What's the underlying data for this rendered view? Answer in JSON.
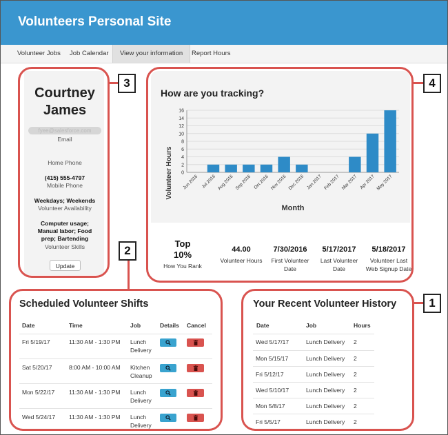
{
  "header": {
    "title": "Volunteers Personal Site"
  },
  "nav": [
    {
      "label": "Volunteer Jobs",
      "active": false
    },
    {
      "label": "Job Calendar",
      "active": false
    },
    {
      "label": "View your information",
      "active": true
    },
    {
      "label": "Report Hours",
      "active": false
    }
  ],
  "callouts": {
    "c1": "1",
    "c2": "2",
    "c3": "3",
    "c4": "4"
  },
  "colors": {
    "header": "#3a96cf",
    "frame": "#d9534f",
    "bar": "#2e8bc7",
    "details_button": "#39a3cf",
    "cancel_button": "#d9534f"
  },
  "profile": {
    "first_name": "Courtney",
    "last_name": "James",
    "email_value": "fyee@salesforce.com",
    "email_label": "Email",
    "home_phone_label": "Home Phone",
    "mobile_phone_value": "(415) 555-4797",
    "mobile_phone_label": "Mobile Phone",
    "availability_value": "Weekdays; Weekends",
    "availability_label": "Volunteer Availability",
    "skills_value": "Computer usage; Manual labor; Food prep; Bartending",
    "skills_label": "Volunteer Skills",
    "update_label": "Update"
  },
  "tracking": {
    "title": "How are you tracking?",
    "stats": [
      {
        "value": "Top 10%",
        "label": "How You Rank"
      },
      {
        "value": "44.00",
        "label": "Volunteer Hours"
      },
      {
        "value": "7/30/2016",
        "label": "First Volunteer Date"
      },
      {
        "value": "5/17/2017",
        "label": "Last Volunteer Date"
      },
      {
        "value": "5/18/2017",
        "label": "Volunteer Last Web Signup Date"
      }
    ]
  },
  "chart_data": {
    "type": "bar",
    "title": "",
    "xlabel": "Month",
    "ylabel": "Volunteer Hours",
    "ylim": [
      0,
      16
    ],
    "yticks": [
      0,
      2,
      4,
      6,
      8,
      10,
      12,
      14,
      16
    ],
    "grid": true,
    "categories": [
      "Jun 2016",
      "Jul 2016",
      "Aug 2016",
      "Sep 2016",
      "Oct 2016",
      "Nov 2016",
      "Dec 2016",
      "Jan 2017",
      "Feb 2017",
      "Mar 2017",
      "Apr 2017",
      "May 2017"
    ],
    "values": [
      0,
      2,
      2,
      2,
      2,
      4,
      2,
      0,
      0,
      4,
      10,
      16
    ]
  },
  "shifts": {
    "title": "Scheduled Volunteer Shifts",
    "headers": {
      "date": "Date",
      "time": "Time",
      "job": "Job",
      "details": "Details",
      "cancel": "Cancel"
    },
    "rows": [
      {
        "date": "Fri 5/19/17",
        "time": "11:30 AM - 1:30 PM",
        "job1": "Lunch",
        "job2": "Delivery"
      },
      {
        "date": "Sat 5/20/17",
        "time": "8:00 AM - 10:00 AM",
        "job1": "Kitchen",
        "job2": "Cleanup"
      },
      {
        "date": "Mon 5/22/17",
        "time": "11:30 AM - 1:30 PM",
        "job1": "Lunch",
        "job2": "Delivery"
      },
      {
        "date": "Wed 5/24/17",
        "time": "11:30 AM - 1:30 PM",
        "job1": "Lunch",
        "job2": "Delivery"
      }
    ]
  },
  "history": {
    "title": "Your Recent Volunteer History",
    "headers": {
      "date": "Date",
      "job": "Job",
      "hours": "Hours"
    },
    "rows": [
      {
        "date": "Wed 5/17/17",
        "job": "Lunch Delivery",
        "hours": "2"
      },
      {
        "date": "Mon 5/15/17",
        "job": "Lunch Delivery",
        "hours": "2"
      },
      {
        "date": "Fri 5/12/17",
        "job": "Lunch Delivery",
        "hours": "2"
      },
      {
        "date": "Wed 5/10/17",
        "job": "Lunch Delivery",
        "hours": "2"
      },
      {
        "date": "Mon 5/8/17",
        "job": "Lunch Delivery",
        "hours": "2"
      },
      {
        "date": "Fri 5/5/17",
        "job": "Lunch Delivery",
        "hours": "2"
      }
    ]
  }
}
